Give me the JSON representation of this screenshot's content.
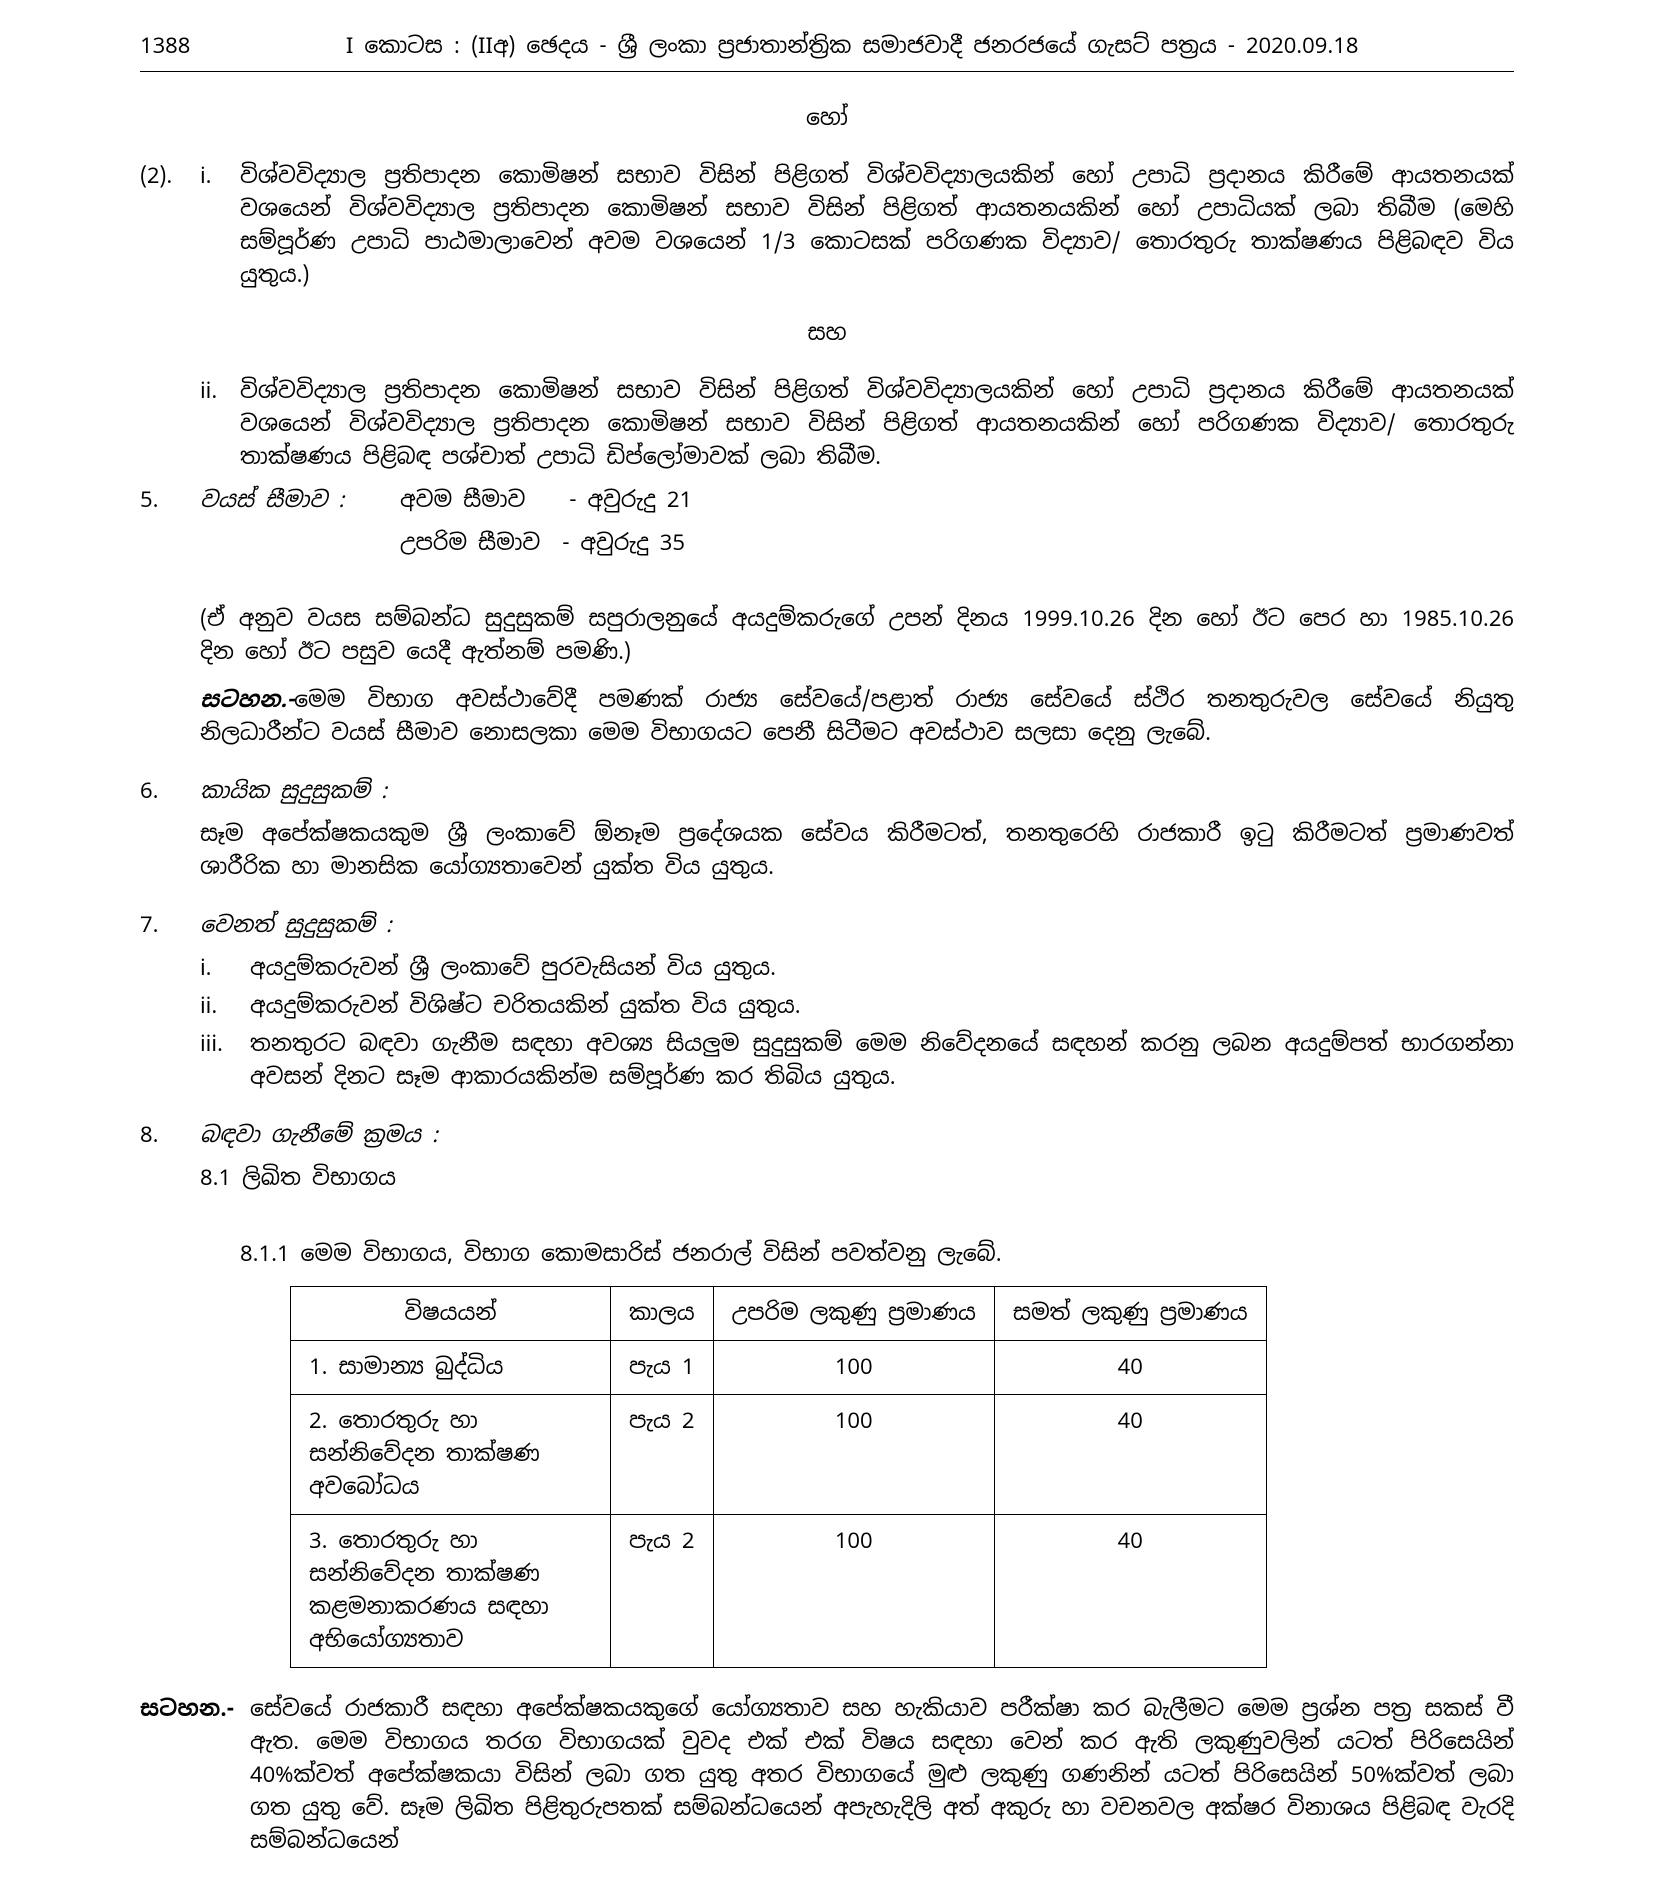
{
  "header": {
    "page_number": "1388",
    "title": "I කොටස : (IIඅ) ඡෙදය - ශ්‍රී ලංකා ප්‍රජාතාන්ත්‍රික සමාජවාදී ජනරජයේ ගැසට් පත්‍රය - 2020.09.18"
  },
  "word_or": "හෝ",
  "word_and": "සහ",
  "item_2i": "විශ්වවිද්‍යාල ප්‍රතිපාදන කොමිෂන් සභාව විසින් පිළිගත් විශ්වවිද්‍යාලයකින් හෝ උපාධි ප්‍රදානය කිරීමේ ආයතනයක් වශයෙන් විශ්වවිද්‍යාල ප්‍රතිපාදන කොමිෂන් සභාව විසින් පිළිගත් ආයතනයකින් හෝ උපාධියක් ලබා තිබීම (මෙහි සම්පූර්ණ උපාධි පාඨමාලාවෙන් අවම වශයෙන් 1/3 කොටසක් පරිගණක විද්‍යාව/ තොරතුරු තාක්ෂණය පිළිබඳව විය යුතුය.)",
  "item_2ii": "විශ්වවිද්‍යාල ප්‍රතිපාදන කොමිෂන් සභාව විසින් පිළිගත් විශ්වවිද්‍යාලයකින් හෝ උපාධි ප්‍රදානය කිරීමේ ආයතනයක් වශයෙන් විශ්වවිද්‍යාල ප්‍රතිපාදන කොමිෂන් සභාව විසින් පිළිගත් ආයතනයකින් හෝ පරිගණක විද්‍යාව/ තොරතුරු තාක්ෂණය පිළිබඳ පශ්චාත් උපාධි ඩිප්ලෝමාවක් ලබා තිබීම.",
  "section_5": {
    "title": "වයස් සීමාව :",
    "min_label": "අවම සීමාව",
    "min_val": "- අවුරුදු 21",
    "max_label": "උපරිම සීමාව",
    "max_val": "- අවුරුදු 35",
    "para1": "(ඒ අනුව වයස සම්බන්ධ සුදුසුකම් සපුරාලනුයේ අයදුම්කරුගේ උපන් දිනය 1999.10.26 දින හෝ ඊට පෙර හා 1985.10.26 දින හෝ ඊට පසුව යෙදී ඇත්නම් පමණි.)",
    "note_label": "සටහන.-",
    "note": "මෙම විභාග අවස්ථාවේදී පමණක් රාජ්‍ය සේවයේ/පළාත් රාජ්‍ය සේවයේ ස්ථිර තනතුරුවල සේවයේ නියුතු නිලධාරීන්ට වයස් සීමාව නොසලකා මෙම විභාගයට පෙනී සිටීමට අවස්ථාව සලසා දෙනු ලැබේ."
  },
  "section_6": {
    "title": "කායික සුදුසුකම් :",
    "text": "සෑම අපේක්ෂකයකුම ශ්‍රී ලංකාවේ ඕනෑම ප්‍රදේශයක සේවය කිරීමටත්, තනතුරෙහි රාජකාරී ඉටු කිරීමටත් ප්‍රමාණවත් ශාරීරික හා මානසික යෝග්‍යතාවෙන් යුක්ත විය යුතුය."
  },
  "section_7": {
    "title": "වෙනත් සුදුසුකම් :",
    "items": {
      "i": "අයදුම්කරුවන් ශ්‍රී ලංකාවේ පුරවැසියන් විය යුතුය.",
      "ii": "අයදුම්කරුවන් විශිෂ්ට චරිතයකින් යුක්ත විය යුතුය.",
      "iii": "තනතුරට බඳවා ගැනීම සඳහා අවශ්‍ය සියලුම සුදුසුකම් මෙම නිවේදනයේ සඳහන් කරනු ලබන අයදුම්පත් භාරගන්නා අවසන් දිනට සෑම ආකාරයකින්ම සම්පූර්ණ කර තිබිය යුතුය."
    }
  },
  "section_8": {
    "title": "බඳවා ගැනීමේ ක්‍රමය :",
    "sub_81": "8.1  ලිඛිත විභාගය",
    "sub_811": "8.1.1  මෙම විභාගය, විභාග කොමසාරිස් ජනරාල් විසින් පවත්වනු ලැබේ.",
    "table": {
      "headers": [
        "විෂයයන්",
        "කාලය",
        "උපරිම ලකුණු ප්‍රමාණය",
        "සමත් ලකුණු ප්‍රමාණය"
      ],
      "rows": [
        [
          "1.  සාමාන්‍ය බුද්ධිය",
          "පැය 1",
          "100",
          "40"
        ],
        [
          "2.  තොරතුරු හා සන්නිවේදන තාක්ෂණ අවබෝධය",
          "පැය 2",
          "100",
          "40"
        ],
        [
          "3.  තොරතුරු හා සන්නිවේදන තාක්ෂණ කළමනාකරණය සඳහා අභියෝග්‍යතාව",
          "පැය 2",
          "100",
          "40"
        ]
      ]
    }
  },
  "footer_note": {
    "label": "සටහන.-",
    "text": "සේවයේ රාජකාරී සඳහා අපේක්ෂකයකුගේ යෝග්‍යතාව සහ හැකියාව පරීක්ෂා කර බැලීමට මෙම ප්‍රශ්න පත්‍ර සකස් වී ඇත. මෙම විභාගය තරග විභාගයක් වුවද එක් එක් විෂය සඳහා වෙන් කර ඇති ලකුණුවලින් යටත් පිරිසෙයින් 40%ක්වත් අපේක්ෂකයා විසින් ලබා ගත යුතු අතර විභාගයේ මුළු ලකුණු ගණනින් යටත් පිරිසෙයින් 50%ක්වත් ලබා ගත යුතු වේ. සෑම ලිඛිත පිළිතුරුපතක් සම්බන්ධයෙන් අපැහැදිලි අත් අකුරු හා වචනවල අක්ෂර විනාශය පිළිබඳ වැරදි සම්බන්ධයෙන්"
  }
}
